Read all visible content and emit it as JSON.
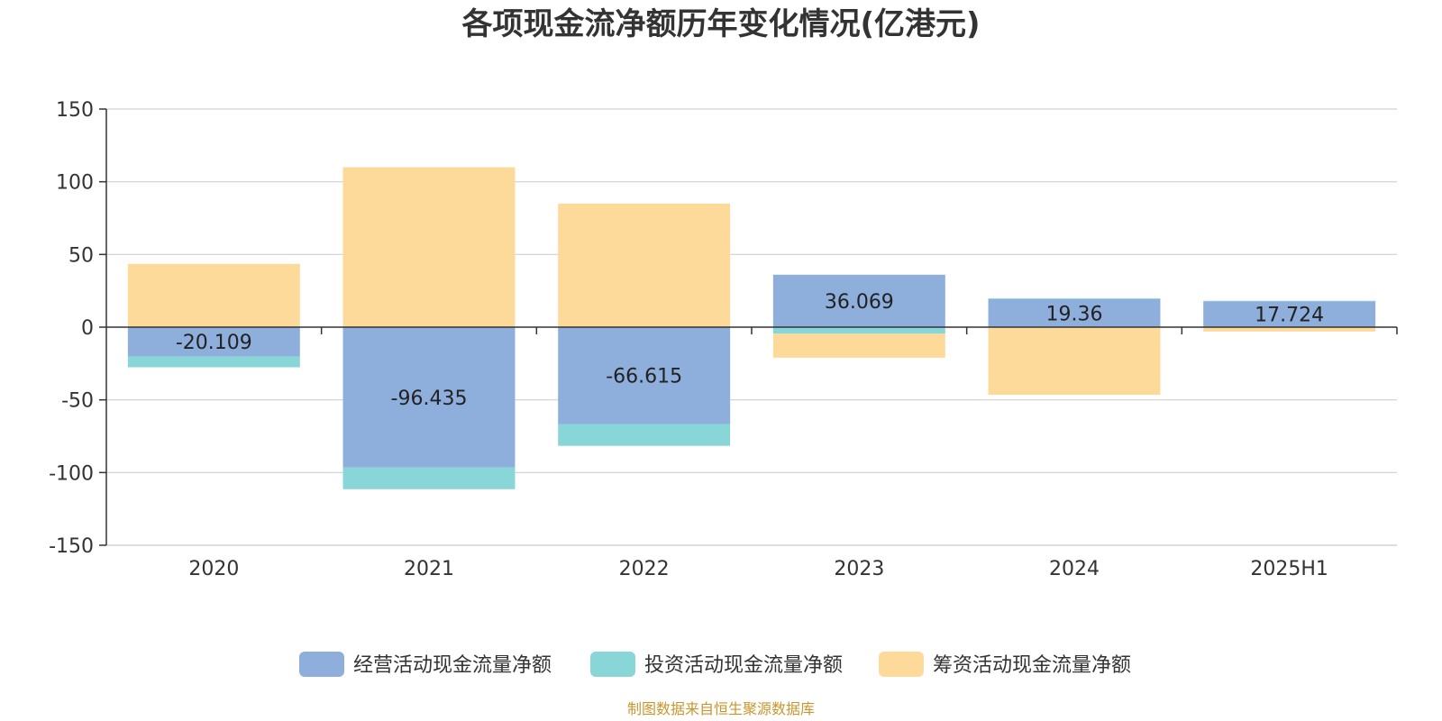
{
  "chart_data": {
    "type": "bar",
    "stacked": true,
    "title": "各项现金流净额历年变化情况(亿港元)",
    "categories": [
      "2020",
      "2021",
      "2022",
      "2023",
      "2024",
      "2025H1"
    ],
    "ylim": [
      -150,
      150
    ],
    "yticks": [
      150,
      100,
      50,
      0,
      -50,
      -100,
      -150
    ],
    "ytick_labels": [
      "150",
      "100",
      "50",
      "0",
      "-50",
      "-100",
      "-150"
    ],
    "grid": true,
    "legend_position": "bottom",
    "series": [
      {
        "name": "经营活动现金流量净额",
        "color": "#8eaedc",
        "values": [
          -20.109,
          -96.435,
          -66.615,
          36.069,
          19.36,
          17.724
        ],
        "labels": [
          "-20.109",
          "-96.435",
          "-66.615",
          "36.069",
          "19.36",
          "17.724"
        ]
      },
      {
        "name": "投资活动现金流量净额",
        "color": "#88d6d8",
        "values": [
          -7.5,
          -15,
          -15,
          -4.5,
          0.5,
          0.4
        ]
      },
      {
        "name": "筹资活动现金流量净额",
        "color": "#fdd99a",
        "values": [
          43.5,
          110,
          85,
          -16.5,
          -46.5,
          -3
        ]
      }
    ]
  },
  "footer": {
    "source": "制图数据来自恒生聚源数据库"
  }
}
